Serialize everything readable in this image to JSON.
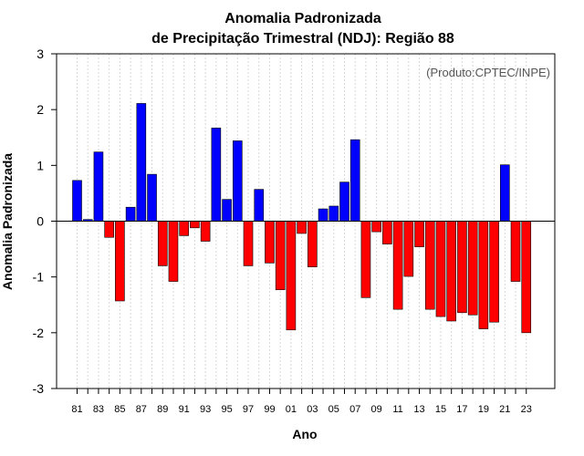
{
  "chart_data": {
    "type": "bar",
    "title_line1": "Anomalia Padronizada",
    "title_line2": "de Precipitação Trimestral (NDJ): Região 88",
    "credit": "(Produto:CPTEC/INPE)",
    "xlabel": "Ano",
    "ylabel": "Anomalia Padronizada",
    "ylim": [
      -3,
      3
    ],
    "yticks": [
      "-3",
      "-2",
      "-1",
      "0",
      "1",
      "2",
      "3"
    ],
    "positive_color": "#0000ff",
    "negative_color": "#ff0000",
    "categories": [
      "81",
      "82",
      "83",
      "84",
      "85",
      "86",
      "87",
      "88",
      "89",
      "90",
      "91",
      "92",
      "93",
      "94",
      "95",
      "96",
      "97",
      "98",
      "99",
      "00",
      "01",
      "02",
      "03",
      "04",
      "05",
      "06",
      "07",
      "08",
      "09",
      "10",
      "11",
      "12",
      "13",
      "14",
      "15",
      "16",
      "17",
      "18",
      "19",
      "20",
      "21",
      "22",
      "23"
    ],
    "xtick_labels": [
      "81",
      "83",
      "85",
      "87",
      "89",
      "91",
      "93",
      "95",
      "97",
      "99",
      "01",
      "03",
      "05",
      "07",
      "09",
      "11",
      "13",
      "15",
      "17",
      "19",
      "21",
      "23"
    ],
    "values": [
      0.73,
      0.03,
      1.24,
      -0.29,
      -1.43,
      0.25,
      2.11,
      0.84,
      -0.8,
      -1.08,
      -0.26,
      -0.12,
      -0.36,
      1.67,
      0.39,
      1.44,
      -0.8,
      0.57,
      -0.75,
      -1.23,
      -1.95,
      -0.22,
      -0.82,
      0.22,
      0.27,
      0.7,
      1.46,
      -1.37,
      -0.19,
      -0.41,
      -1.58,
      -0.99,
      -0.46,
      -1.58,
      -1.71,
      -1.79,
      -1.64,
      -1.68,
      -1.93,
      -1.81,
      1.01,
      -1.08,
      -2.0
    ],
    "grid": true
  }
}
